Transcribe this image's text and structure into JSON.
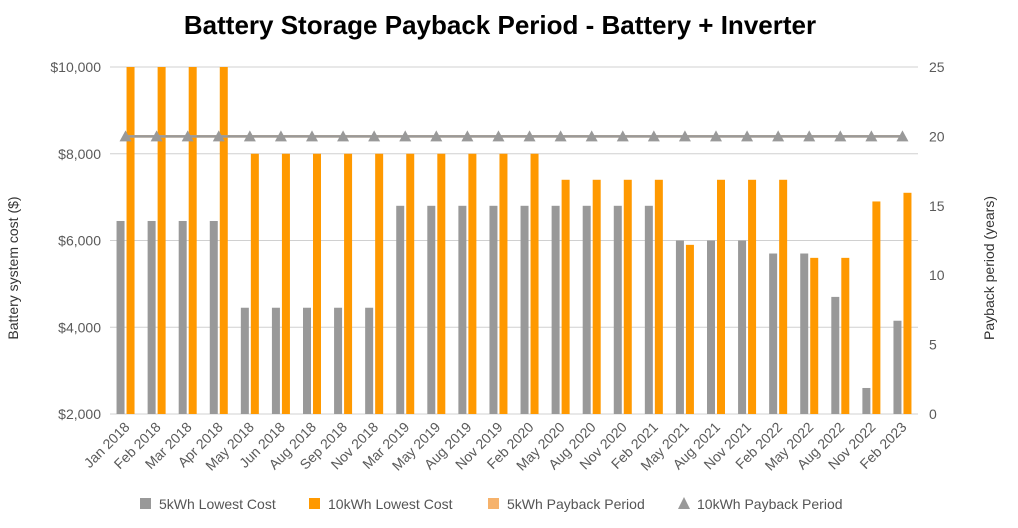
{
  "chart_data": {
    "type": "bar",
    "title": "Battery Storage Payback Period - Battery + Inverter",
    "ylabel": "Battery system cost ($)",
    "y2label": "Payback period (years)",
    "ylim": [
      2000,
      10000
    ],
    "y2lim": [
      0,
      25
    ],
    "yticks": [
      "$2,000",
      "$4,000",
      "$6,000",
      "$8,000",
      "$10,000"
    ],
    "y2ticks": [
      "0",
      "5",
      "10",
      "15",
      "20",
      "25"
    ],
    "grid": true,
    "legend_position": "bottom",
    "categories": [
      "Jan 2018",
      "Feb 2018",
      "Mar 2018",
      "Apr 2018",
      "May 2018",
      "Jun 2018",
      "Aug 2018",
      "Sep 2018",
      "Nov 2018",
      "Mar 2019",
      "May 2019",
      "Aug 2019",
      "Nov 2019",
      "Feb 2020",
      "May 2020",
      "Aug 2020",
      "Nov 2020",
      "Feb 2021",
      "May 2021",
      "Aug 2021",
      "Nov 2021",
      "Feb 2022",
      "May 2022",
      "Aug 2022",
      "Nov 2022",
      "Feb 2023"
    ],
    "series": [
      {
        "name": "5kWh Lowest Cost",
        "type": "bar",
        "axis": "left",
        "color": "#999999",
        "values": [
          6450,
          6450,
          6450,
          6450,
          4450,
          4450,
          4450,
          4450,
          4450,
          6800,
          6800,
          6800,
          6800,
          6800,
          6800,
          6800,
          6800,
          6800,
          6000,
          6000,
          6000,
          5700,
          5700,
          4700,
          2600,
          4150
        ]
      },
      {
        "name": "10kWh Lowest Cost",
        "type": "bar",
        "axis": "left",
        "color": "#ff9900",
        "values": [
          10000,
          10000,
          10000,
          10000,
          8000,
          8000,
          8000,
          8000,
          8000,
          8000,
          8000,
          8000,
          8000,
          8000,
          7400,
          7400,
          7400,
          7400,
          5900,
          7400,
          7400,
          7400,
          5600,
          5600,
          6900,
          7100
        ]
      },
      {
        "name": "5kWh Payback Period",
        "type": "line",
        "axis": "right",
        "color": "#f6b26b",
        "values": [
          20,
          20,
          20,
          20,
          20,
          20,
          20,
          20,
          20,
          20,
          20,
          20,
          20,
          20,
          20,
          20,
          20,
          20,
          20,
          20,
          20,
          20,
          20,
          20,
          20,
          20
        ]
      },
      {
        "name": "10kWh Payback Period",
        "type": "line",
        "axis": "right",
        "color": "#999999",
        "marker": "triangle",
        "values": [
          20,
          20,
          20,
          20,
          20,
          20,
          20,
          20,
          20,
          20,
          20,
          20,
          20,
          20,
          20,
          20,
          20,
          20,
          20,
          20,
          20,
          20,
          20,
          20,
          20,
          20
        ]
      }
    ]
  }
}
